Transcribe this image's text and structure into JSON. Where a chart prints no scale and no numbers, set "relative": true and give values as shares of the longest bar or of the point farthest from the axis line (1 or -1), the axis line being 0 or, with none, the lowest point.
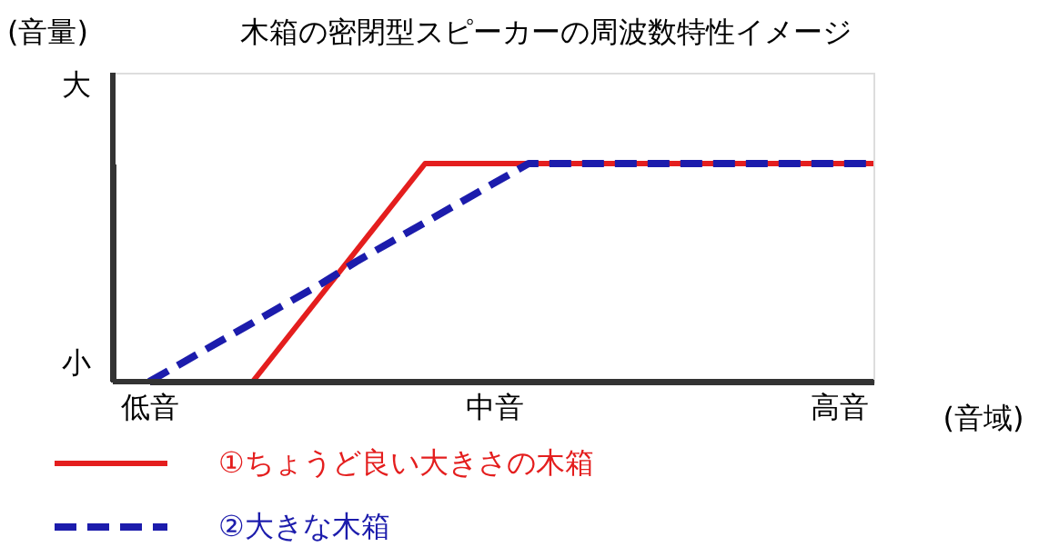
{
  "chart_data": {
    "type": "line",
    "relative": true,
    "title": "木箱の密閉型スピーカーの周波数特性イメージ",
    "xlabel": "(音域)",
    "ylabel": "(音量)",
    "annotations": [
      "大",
      "小"
    ],
    "legend": "bottom",
    "grid": false,
    "categories": [
      "低音",
      null,
      null,
      null,
      null,
      null,
      null,
      null,
      null,
      null,
      "中音",
      null,
      null,
      null,
      null,
      null,
      null,
      null,
      null,
      null,
      "高音",
      null
    ],
    "series": [
      {
        "name": "①ちょうど良い大きさの木箱",
        "color": "#e41e1e",
        "line_style": "solid",
        "values": [
          null,
          null,
          null,
          0,
          0.2,
          0.4,
          0.6,
          0.8,
          1,
          1,
          1,
          1,
          1,
          1,
          1,
          1,
          1,
          1,
          1,
          1,
          1,
          1
        ]
      },
      {
        "name": "②大きな木箱",
        "color": "#1c1cac",
        "line_style": "dashed",
        "values": [
          0,
          0.09,
          0.18,
          0.27,
          0.36,
          0.45,
          0.55,
          0.64,
          0.73,
          0.82,
          0.91,
          1,
          1,
          1,
          1,
          1,
          1,
          1,
          1,
          1,
          1,
          1
        ]
      }
    ]
  }
}
